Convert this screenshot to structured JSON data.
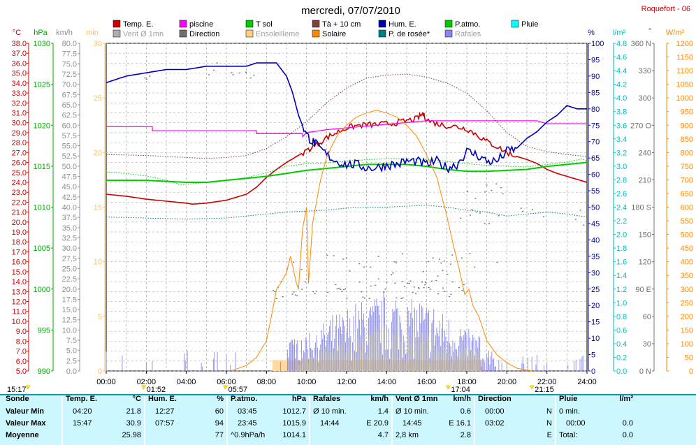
{
  "title": "mercredi, 07/07/2010",
  "station": "Roquefort - 06",
  "legend": [
    {
      "label": "Temp. E.",
      "color": "#cc0000",
      "col": 0,
      "row": 0
    },
    {
      "label": "Vent Ø 1mn",
      "color": "#b0b0b0",
      "col": 0,
      "row": 1,
      "muted": true
    },
    {
      "label": "piscine",
      "color": "#ff00ff",
      "col": 1,
      "row": 0
    },
    {
      "label": "Direction",
      "color": "#707070",
      "col": 1,
      "row": 1
    },
    {
      "label": "T sol",
      "color": "#00cc00",
      "col": 2,
      "row": 0
    },
    {
      "label": "Ensoleilleme",
      "color": "#ffd080",
      "col": 2,
      "row": 1,
      "muted": true
    },
    {
      "label": "Tà + 10 cm",
      "color": "#804040",
      "col": 3,
      "row": 0
    },
    {
      "label": "Solaire",
      "color": "#ff8800",
      "col": 3,
      "row": 1
    },
    {
      "label": "Hum. E.",
      "color": "#0000aa",
      "col": 4,
      "row": 0
    },
    {
      "label": "P. de rosée*",
      "color": "#008080",
      "col": 4,
      "row": 1
    },
    {
      "label": "P.atmo.",
      "color": "#00cc00",
      "col": 5,
      "row": 0
    },
    {
      "label": "Rafales",
      "color": "#8888ee",
      "col": 5,
      "row": 1,
      "muted": true
    },
    {
      "label": "Pluie",
      "color": "#00ffff",
      "col": 6,
      "row": 0
    }
  ],
  "axes": {
    "temp": {
      "unit": "°C",
      "color": "#cc0000",
      "min": 5,
      "max": 38,
      "step": 1
    },
    "pressure": {
      "unit": "hPa",
      "color": "#00aa00",
      "min": 990,
      "max": 1030,
      "step": 5
    },
    "wind": {
      "unit": "km/h",
      "color": "#909090",
      "min": 0,
      "max": 80,
      "step": 2.5
    },
    "sun_min": {
      "unit": "min",
      "color": "#ffc060",
      "min": 0,
      "max": 30,
      "step": 5
    },
    "humidity": {
      "unit": "%",
      "color": "#0000aa",
      "min": 0,
      "max": 100,
      "step": 5
    },
    "rain": {
      "unit": "l/m²",
      "color": "#00c0c0",
      "min": 0,
      "max": 4.8,
      "step": 0.2
    },
    "direction": {
      "unit": "°",
      "color": "#707070",
      "ticks": [
        {
          "v": 0,
          "l": "0 N"
        },
        {
          "v": 30,
          "l": "30"
        },
        {
          "v": 60,
          "l": "60"
        },
        {
          "v": 90,
          "l": "90 E"
        },
        {
          "v": 120,
          "l": "120"
        },
        {
          "v": 150,
          "l": "150"
        },
        {
          "v": 180,
          "l": "180 S"
        },
        {
          "v": 210,
          "l": "210"
        },
        {
          "v": 240,
          "l": "240"
        },
        {
          "v": 270,
          "l": "270 O"
        },
        {
          "v": 300,
          "l": "300"
        },
        {
          "v": 330,
          "l": "330"
        },
        {
          "v": 360,
          "l": "360 N"
        }
      ]
    },
    "solar": {
      "unit": "W/m²",
      "color": "#ff8800",
      "min": 0,
      "max": 1200,
      "step": 50
    }
  },
  "time_ticks": [
    "00:00",
    "02:00",
    "04:00",
    "06:00",
    "08:00",
    "10:00",
    "12:00",
    "14:00",
    "16:00",
    "18:00",
    "20:00",
    "22:00",
    "24:00"
  ],
  "time_markers": [
    {
      "label": "15:17",
      "x": 0
    },
    {
      "label": "01:52",
      "x": 1.87
    },
    {
      "label": "05:57",
      "x": 5.95
    },
    {
      "label": "17:04",
      "x": 17.07
    },
    {
      "label": "21:15",
      "x": 21.25
    }
  ],
  "chart_data": {
    "type": "line",
    "x_unit": "hour",
    "xlim": [
      0,
      24
    ],
    "series": [
      {
        "name": "Temp. E.",
        "axis": "temp",
        "color": "#cc0000",
        "width": 1.6,
        "x": [
          0,
          1,
          2,
          3,
          4,
          4.3,
          5,
          6,
          7,
          7.5,
          8,
          8.5,
          9,
          9.5,
          10,
          10.5,
          11,
          11.5,
          12,
          12.5,
          13,
          13.5,
          14,
          14.5,
          15,
          15.5,
          15.8,
          16,
          16.5,
          17,
          17.5,
          18,
          18.5,
          19,
          19.5,
          20,
          20.5,
          21,
          21.5,
          22,
          22.5,
          23,
          23.5,
          24
        ],
        "y": [
          22.8,
          22.6,
          22.3,
          22.1,
          21.9,
          21.8,
          21.9,
          22.2,
          22.8,
          23.5,
          24.5,
          25.3,
          26.0,
          26.6,
          27.2,
          27.8,
          28.5,
          29.0,
          29.5,
          29.7,
          29.8,
          29.8,
          29.9,
          30.0,
          30.2,
          30.4,
          30.9,
          30.3,
          29.9,
          29.7,
          29.6,
          29.4,
          28.8,
          28.1,
          27.6,
          27.0,
          26.6,
          26.3,
          25.9,
          25.3,
          24.9,
          24.6,
          24.3,
          24.0
        ]
      },
      {
        "name": "piscine",
        "axis": "temp",
        "color": "#ff00ff",
        "width": 1.3,
        "x": [
          0,
          2.3,
          2.31,
          7.5,
          7.51,
          9.8,
          9.81,
          10,
          11,
          16,
          21.5,
          22,
          24
        ],
        "y": [
          29.6,
          29.6,
          29.2,
          29.2,
          28.9,
          28.9,
          28.6,
          29.0,
          29.3,
          30.2,
          30.2,
          29.9,
          29.9
        ]
      },
      {
        "name": "T sol",
        "axis": "temp",
        "color": "#00cc00",
        "width": 2,
        "x": [
          0,
          2,
          4,
          5,
          6,
          7,
          8,
          9,
          10,
          11,
          12,
          13,
          14,
          15,
          16,
          17,
          18,
          19,
          20,
          21,
          22,
          23,
          24
        ],
        "y": [
          24.2,
          24.2,
          24.0,
          24.0,
          24.2,
          24.4,
          24.6,
          24.9,
          25.2,
          25.4,
          25.6,
          25.8,
          25.8,
          25.8,
          25.6,
          25.3,
          25.1,
          25.1,
          25.2,
          25.3,
          25.6,
          25.8,
          26.0
        ]
      },
      {
        "name": "Tà + 10 cm",
        "axis": "temp",
        "color": "#804040",
        "width": 1,
        "dotted": true,
        "x": [
          0,
          2,
          4,
          5,
          6,
          7,
          8,
          9,
          10,
          11,
          12,
          13,
          14,
          15,
          16,
          17,
          18,
          19,
          20,
          21,
          22,
          23,
          24
        ],
        "y": [
          26.8,
          26.7,
          26.5,
          26.4,
          26.5,
          26.7,
          27.4,
          28.6,
          30.1,
          32.0,
          33.5,
          34.5,
          34.8,
          34.9,
          34.6,
          34.0,
          33.0,
          31.2,
          29.0,
          27.6,
          27.1,
          26.8,
          26.6
        ]
      },
      {
        "name": "P. de rosée*",
        "axis": "temp",
        "color": "#008080",
        "width": 1,
        "dotted": true,
        "x": [
          0,
          2,
          4,
          6,
          8,
          9,
          10,
          11,
          12,
          13,
          14,
          15,
          16,
          17,
          18,
          19,
          20,
          21,
          22,
          23,
          24
        ],
        "y": [
          20.5,
          20.4,
          20.3,
          20.4,
          20.8,
          21.0,
          21.1,
          21.2,
          21.4,
          21.5,
          21.5,
          21.6,
          21.7,
          21.5,
          21.2,
          21.0,
          20.6,
          20.8,
          21.0,
          20.8,
          20.5
        ]
      },
      {
        "name": "P.atmo.",
        "axis": "pressure",
        "color": "#00cc00",
        "width": 1,
        "dotted": true,
        "x": [
          0,
          1,
          2,
          3,
          3.75,
          4,
          5,
          6,
          7,
          8,
          9,
          10,
          11,
          12,
          13,
          14,
          15,
          16,
          17,
          18,
          19,
          20,
          21,
          22,
          23,
          23.75,
          24
        ],
        "y": [
          1014.3,
          1014.1,
          1013.8,
          1013.3,
          1012.7,
          1012.8,
          1013.0,
          1013.3,
          1013.6,
          1014.2,
          1015.0,
          1015.3,
          1015.4,
          1015.6,
          1015.8,
          1015.9,
          1015.9,
          1015.8,
          1015.6,
          1015.3,
          1015.1,
          1015.0,
          1014.9,
          1015.2,
          1015.5,
          1015.9,
          1015.6
        ]
      },
      {
        "name": "Hum. E.",
        "axis": "humidity",
        "color": "#0000bb",
        "width": 1.6,
        "x": [
          0,
          0.5,
          1,
          2,
          3,
          4,
          5,
          6,
          7,
          7.5,
          8,
          8.5,
          9,
          9.3,
          9.6,
          10,
          10.3,
          10.5,
          11,
          11.5,
          12,
          12.5,
          13,
          13.5,
          14,
          14.5,
          15,
          15.5,
          16,
          16.5,
          17,
          17.5,
          18,
          18.5,
          19,
          19.5,
          20,
          20.5,
          21,
          21.5,
          22,
          22.5,
          23,
          23.5,
          24
        ],
        "y": [
          88,
          89,
          90,
          91,
          92,
          92,
          93,
          93,
          93,
          94,
          94,
          94,
          90,
          85,
          78,
          72,
          70,
          69,
          66,
          64,
          63,
          63,
          62,
          62,
          63,
          63,
          64,
          64,
          63,
          64,
          62,
          63,
          67,
          66,
          64,
          64,
          67,
          68,
          71,
          73,
          76,
          78,
          81,
          80,
          80
        ]
      }
    ],
    "bars": [
      {
        "name": "Ensoleilleme",
        "axis": "sun_min",
        "color": "#ffd9a0",
        "start": 8.3,
        "end": 18.8,
        "value": 1
      },
      {
        "name": "Rafales",
        "axis": "wind",
        "color": "#8888ee",
        "note": "gusts peak ~20.9 km/h around 14:44"
      },
      {
        "name": "Vent Ø 1mn",
        "axis": "wind",
        "color": "#b0b0b0",
        "note": "average wind peak ~16.1 km/h around 14:45"
      }
    ],
    "solar": {
      "name": "Solaire",
      "axis": "solar",
      "color": "#ff8800",
      "x": [
        6.3,
        7,
        7.5,
        8,
        8.3,
        8.5,
        8.7,
        9,
        9.2,
        9.5,
        9.6,
        9.8,
        10,
        10.1,
        10.3,
        10.5,
        10.7,
        11,
        11.3,
        11.6,
        12,
        12.5,
        13,
        13.5,
        14,
        14.5,
        15,
        15.5,
        16,
        16.5,
        17,
        17.3,
        17.6,
        17.9,
        18.1,
        18.3,
        18.6,
        19,
        19.5,
        20,
        20.5,
        21,
        21.25
      ],
      "y": [
        2,
        20,
        50,
        110,
        220,
        300,
        320,
        360,
        420,
        320,
        300,
        520,
        600,
        320,
        540,
        620,
        700,
        780,
        830,
        870,
        900,
        930,
        945,
        955,
        945,
        930,
        900,
        860,
        790,
        710,
        570,
        470,
        380,
        280,
        300,
        240,
        200,
        110,
        60,
        30,
        10,
        3,
        0
      ]
    },
    "direction_points": {
      "name": "Direction",
      "axis": "direction",
      "color": "#707070"
    }
  },
  "summary": {
    "columns": [
      {
        "head": "Sonde",
        "rows": [
          "Valeur Min",
          "Valeur Max",
          "Moyenne"
        ]
      },
      {
        "head": "Temp. E.",
        "unit": "°C",
        "t": [
          "04:20",
          "15:47",
          ""
        ],
        "v": [
          "21.8",
          "30.9",
          "25.98"
        ]
      },
      {
        "head": "Hum. E.",
        "unit": "%",
        "t": [
          "12:27",
          "07:57",
          ""
        ],
        "v": [
          "60",
          "94",
          "77"
        ]
      },
      {
        "head": "P.atmo.",
        "unit": "hPa",
        "t": [
          "03:45",
          "23:45",
          "^0.9hPa/h"
        ],
        "v": [
          "1012.7",
          "1015.9",
          "1014.1"
        ]
      },
      {
        "head": "Rafales",
        "unit": "km/h",
        "t": [
          "Ø 10 min.",
          "14:44",
          ""
        ],
        "v": [
          "1.4",
          "E 20.9",
          "4.7"
        ]
      },
      {
        "head": "Vent Ø 1mn",
        "unit": "km/h",
        "t": [
          "Ø 10 min.",
          "14:45",
          "2,8 km"
        ],
        "v": [
          "0.6",
          "E 16.1",
          "2.8"
        ]
      },
      {
        "head": "Direction",
        "unit": "",
        "t": [
          "00:00",
          "03:02",
          ""
        ],
        "v": [
          "N",
          "N",
          "E"
        ]
      },
      {
        "head": "Pluie",
        "unit": "l/m²",
        "t": [
          "0 min.",
          "00:00",
          "Total:"
        ],
        "v": [
          "",
          "0.0",
          "0.0"
        ]
      }
    ]
  }
}
